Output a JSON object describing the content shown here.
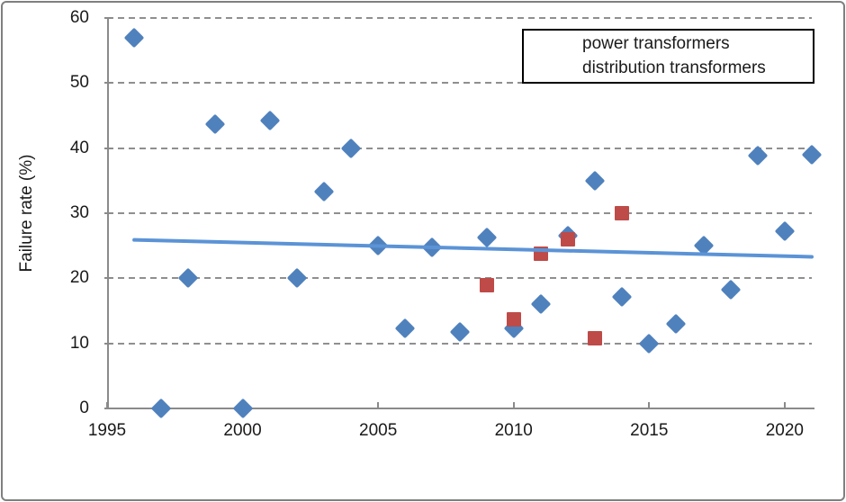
{
  "chart_data": {
    "type": "scatter",
    "title": "",
    "xlabel": "",
    "ylabel": "Failure rate (%)",
    "xlim": [
      1995,
      2021
    ],
    "ylim": [
      0,
      60
    ],
    "x_ticks": [
      1995,
      2000,
      2005,
      2010,
      2015,
      2020
    ],
    "y_ticks": [
      0,
      10,
      20,
      30,
      40,
      50,
      60
    ],
    "grid": "horizontal-dashed",
    "gridline_color": "#8f8f8f",
    "axis_color": "#8a8a8a",
    "legend_position": "top-right-inside",
    "series": [
      {
        "name": "power transformers",
        "marker": "diamond",
        "color": "#4f81bd",
        "points": [
          [
            1996,
            57
          ],
          [
            1997,
            0
          ],
          [
            1998,
            20
          ],
          [
            1999,
            43.7
          ],
          [
            2000,
            0
          ],
          [
            2001,
            44.3
          ],
          [
            2002,
            20
          ],
          [
            2003,
            33.3
          ],
          [
            2004,
            40
          ],
          [
            2005,
            25
          ],
          [
            2006,
            12.3
          ],
          [
            2007,
            24.8
          ],
          [
            2008,
            11.8
          ],
          [
            2009,
            26.3
          ],
          [
            2010,
            12.3
          ],
          [
            2011,
            16
          ],
          [
            2012,
            26.5
          ],
          [
            2013,
            35
          ],
          [
            2014,
            17.1
          ],
          [
            2015,
            10
          ],
          [
            2016,
            13
          ],
          [
            2017,
            25
          ],
          [
            2018,
            18.2
          ],
          [
            2019,
            38.8
          ],
          [
            2020,
            27.2
          ],
          [
            2021,
            39
          ]
        ]
      },
      {
        "name": "distribution transformers",
        "marker": "square",
        "color": "#be4b48",
        "points": [
          [
            2009,
            19
          ],
          [
            2010,
            13.7
          ],
          [
            2011,
            23.8
          ],
          [
            2012,
            26
          ],
          [
            2013,
            10.8
          ],
          [
            2014,
            30
          ]
        ]
      }
    ],
    "trendline": {
      "for_series": "power transformers",
      "color": "#5b93d6",
      "start": [
        1996,
        25.9
      ],
      "end": [
        2021,
        23.3
      ]
    }
  }
}
